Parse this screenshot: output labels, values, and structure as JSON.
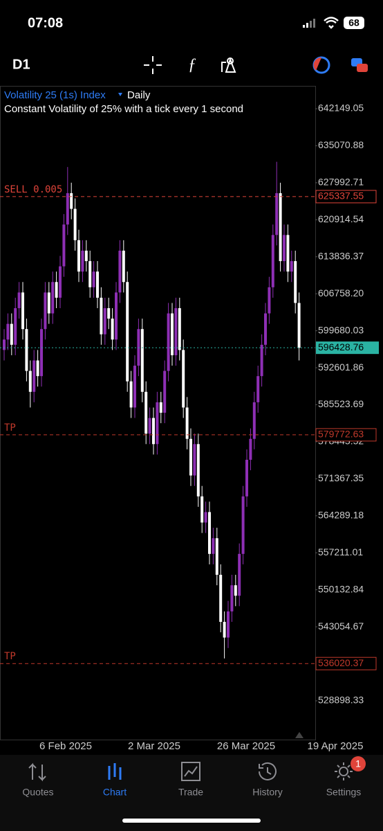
{
  "status": {
    "time": "07:08",
    "battery": "68"
  },
  "toolbar": {
    "timeframe": "D1"
  },
  "chart_data": {
    "type": "candlestick",
    "title": "Volatility 25 (1s) Index",
    "period": "Daily",
    "subtitle": "Constant Volatility of 25% with a tick every 1 second",
    "up_color": "#8e2fb5",
    "down_color": "#ffffff",
    "ylim": [
      521480,
      646520
    ],
    "yticks": [
      642149.05,
      635070.88,
      627992.71,
      620914.54,
      613836.37,
      {
        "value": 606758.2,
        "label": "606758.20"
      },
      599680.03,
      592601.86,
      585523.69,
      578445.52,
      571367.35,
      564289.18,
      557211.01,
      550132.84,
      543054.67,
      528898.33
    ],
    "x_labels": [
      "6 Feb 2025",
      "2 Mar 2025",
      "26 Mar 2025",
      "19 Apr 2025"
    ],
    "levels": [
      {
        "label": "SELL 0.005",
        "value": 625337.55,
        "color": "#e0443a"
      },
      {
        "label": "TP",
        "value": 579772.63,
        "color": "#c0392b"
      },
      {
        "label": "TP",
        "value": 536020.37,
        "color": "#c0392b"
      }
    ],
    "current_price": {
      "value": 596428.76,
      "color": "#2ab3a3"
    },
    "open": [
      596000,
      598000,
      601000,
      597000,
      604000,
      607000,
      600000,
      592000,
      588000,
      594000,
      591000,
      600000,
      607000,
      603000,
      609000,
      606000,
      612000,
      620000,
      626000,
      623000,
      617000,
      611000,
      615000,
      613000,
      608000,
      611000,
      606000,
      599000,
      604000,
      602000,
      598000,
      607000,
      615000,
      609000,
      590000,
      585000,
      593000,
      600000,
      588000,
      580000,
      583000,
      578000,
      586000,
      584000,
      592000,
      603000,
      595000,
      604000,
      596000,
      585000,
      579000,
      572000,
      578000,
      568000,
      563000,
      565000,
      557000,
      560000,
      553000,
      544000,
      541000,
      546000,
      551000,
      549000,
      557000,
      568000,
      575000,
      579000,
      586000,
      591000,
      597000,
      603000,
      608000,
      618000,
      626000,
      613000,
      618000,
      611000,
      613000,
      605000
    ],
    "high": [
      600000,
      603000,
      603000,
      606000,
      609000,
      609000,
      602000,
      594000,
      596000,
      596000,
      602000,
      609000,
      609000,
      611000,
      611000,
      614000,
      622000,
      631000,
      628000,
      625000,
      619000,
      617000,
      617000,
      615000,
      613000,
      613000,
      608000,
      606000,
      606000,
      604000,
      609000,
      617000,
      617000,
      611000,
      592000,
      595000,
      602000,
      602000,
      590000,
      585000,
      585000,
      588000,
      588000,
      594000,
      605000,
      605000,
      606000,
      606000,
      598000,
      587000,
      581000,
      580000,
      580000,
      570000,
      567000,
      567000,
      562000,
      562000,
      555000,
      546000,
      548000,
      553000,
      553000,
      559000,
      570000,
      577000,
      581000,
      588000,
      593000,
      599000,
      605000,
      610000,
      620000,
      632000,
      628000,
      620000,
      620000,
      615000,
      615000,
      607000
    ],
    "low": [
      594000,
      596000,
      595000,
      595000,
      602000,
      598000,
      590000,
      585000,
      586000,
      589000,
      589000,
      598000,
      601000,
      601000,
      604000,
      604000,
      610000,
      618000,
      621000,
      615000,
      609000,
      609000,
      611000,
      606000,
      606000,
      604000,
      597000,
      597000,
      600000,
      596000,
      596000,
      605000,
      607000,
      588000,
      583000,
      583000,
      591000,
      586000,
      578000,
      578000,
      576000,
      576000,
      582000,
      582000,
      590000,
      593000,
      593000,
      594000,
      583000,
      577000,
      570000,
      570000,
      566000,
      561000,
      561000,
      555000,
      555000,
      551000,
      542000,
      537000,
      539000,
      544000,
      547000,
      547000,
      555000,
      566000,
      573000,
      577000,
      584000,
      589000,
      595000,
      601000,
      606000,
      616000,
      611000,
      611000,
      609000,
      609000,
      603000,
      594000
    ],
    "close": [
      598000,
      601000,
      597000,
      604000,
      607000,
      600000,
      592000,
      588000,
      594000,
      591000,
      600000,
      607000,
      603000,
      609000,
      606000,
      612000,
      620000,
      626000,
      623000,
      617000,
      611000,
      615000,
      613000,
      608000,
      611000,
      606000,
      599000,
      604000,
      602000,
      598000,
      607000,
      615000,
      609000,
      590000,
      585000,
      593000,
      600000,
      588000,
      580000,
      583000,
      578000,
      586000,
      584000,
      592000,
      603000,
      595000,
      604000,
      596000,
      585000,
      579000,
      572000,
      578000,
      568000,
      563000,
      565000,
      557000,
      560000,
      553000,
      544000,
      541000,
      546000,
      551000,
      549000,
      557000,
      568000,
      575000,
      579000,
      586000,
      591000,
      597000,
      603000,
      608000,
      618000,
      626000,
      613000,
      618000,
      611000,
      613000,
      605000,
      596428.76
    ]
  },
  "tabs": [
    {
      "label": "Quotes"
    },
    {
      "label": "Chart"
    },
    {
      "label": "Trade"
    },
    {
      "label": "History"
    },
    {
      "label": "Settings"
    }
  ],
  "settings_badge": "1"
}
